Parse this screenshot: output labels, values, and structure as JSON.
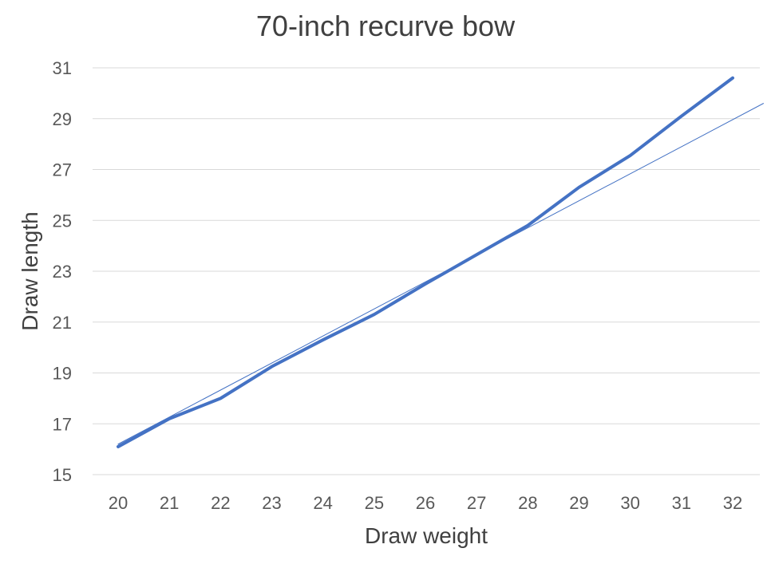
{
  "chart_data": {
    "type": "line",
    "title": "70-inch recurve bow",
    "xlabel": "Draw weight",
    "ylabel": "Draw length",
    "categories": [
      20,
      21,
      22,
      23,
      24,
      25,
      26,
      27,
      28,
      29,
      30,
      31,
      32
    ],
    "series": [
      {
        "name": "Draw length",
        "color": "#4472C4",
        "line_width": 4,
        "values": [
          16.1,
          17.2,
          18.0,
          19.25,
          20.3,
          21.3,
          22.5,
          23.65,
          24.8,
          26.3,
          27.55,
          29.1,
          30.6
        ]
      },
      {
        "name": "Linear trendline",
        "color": "#4472C4",
        "line_width": 1,
        "type": "trendline",
        "x": [
          20,
          32.6
        ],
        "values": [
          16.2,
          29.6
        ]
      }
    ],
    "y_ticks": [
      15,
      17,
      19,
      21,
      23,
      25,
      27,
      29,
      31
    ],
    "ylim": [
      15,
      31
    ],
    "grid": true,
    "legend": "none"
  }
}
